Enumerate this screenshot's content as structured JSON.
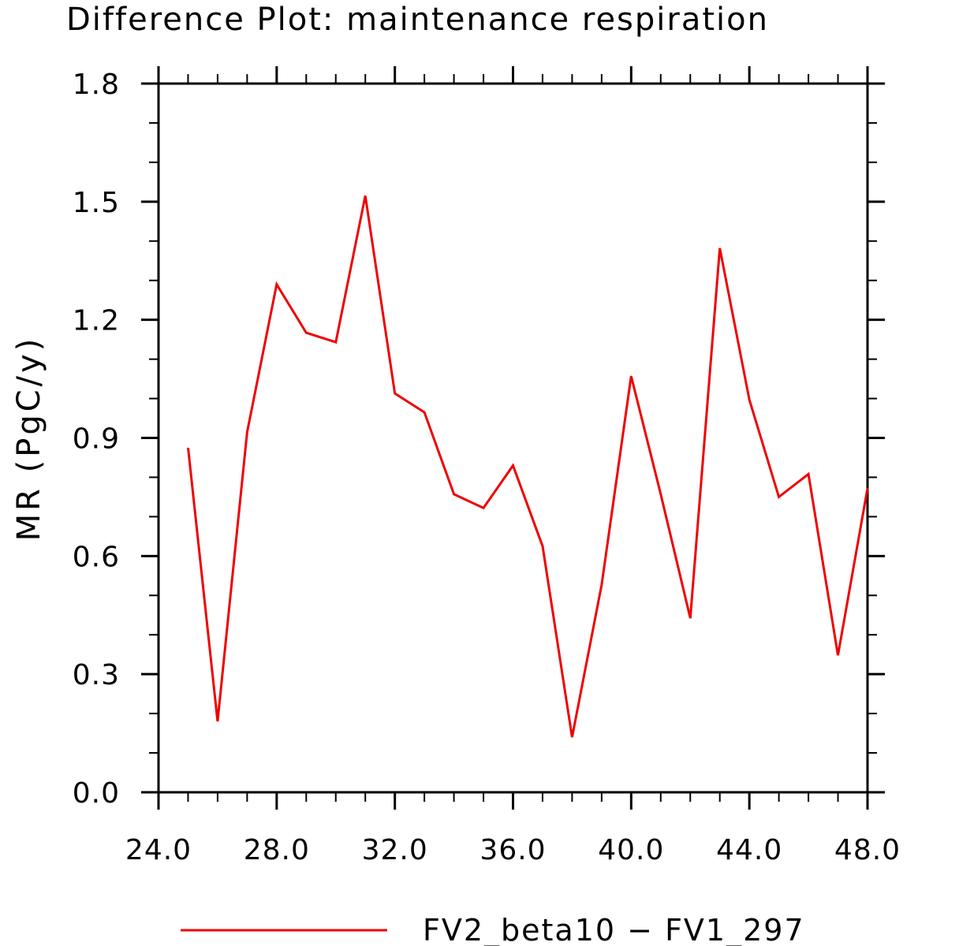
{
  "chart_data": {
    "type": "line",
    "title": "Difference Plot: maintenance respiration",
    "xlabel": "",
    "ylabel": "MR  (PgC/y)",
    "xlim": [
      24.0,
      48.0
    ],
    "ylim": [
      0.0,
      1.8
    ],
    "x_ticks": [
      "24.0",
      "28.0",
      "32.0",
      "36.0",
      "40.0",
      "44.0",
      "48.0"
    ],
    "y_ticks": [
      "0.0",
      "0.3",
      "0.6",
      "0.9",
      "1.2",
      "1.5",
      "1.8"
    ],
    "grid": false,
    "legend_position": "bottom",
    "series": [
      {
        "name": "FV2_beta10 − FV1_297",
        "color": "#ee0000",
        "x": [
          25,
          26,
          27,
          28,
          29,
          30,
          31,
          32,
          33,
          34,
          35,
          36,
          37,
          38,
          39,
          40,
          41,
          42,
          43,
          44,
          45,
          46,
          47,
          48
        ],
        "y": [
          0.875,
          0.18,
          0.915,
          1.29,
          1.167,
          1.143,
          1.515,
          1.013,
          0.965,
          0.757,
          0.722,
          0.83,
          0.625,
          0.14,
          0.527,
          1.057,
          0.757,
          0.442,
          1.382,
          0.997,
          0.75,
          0.808,
          0.348,
          0.772
        ]
      }
    ]
  }
}
